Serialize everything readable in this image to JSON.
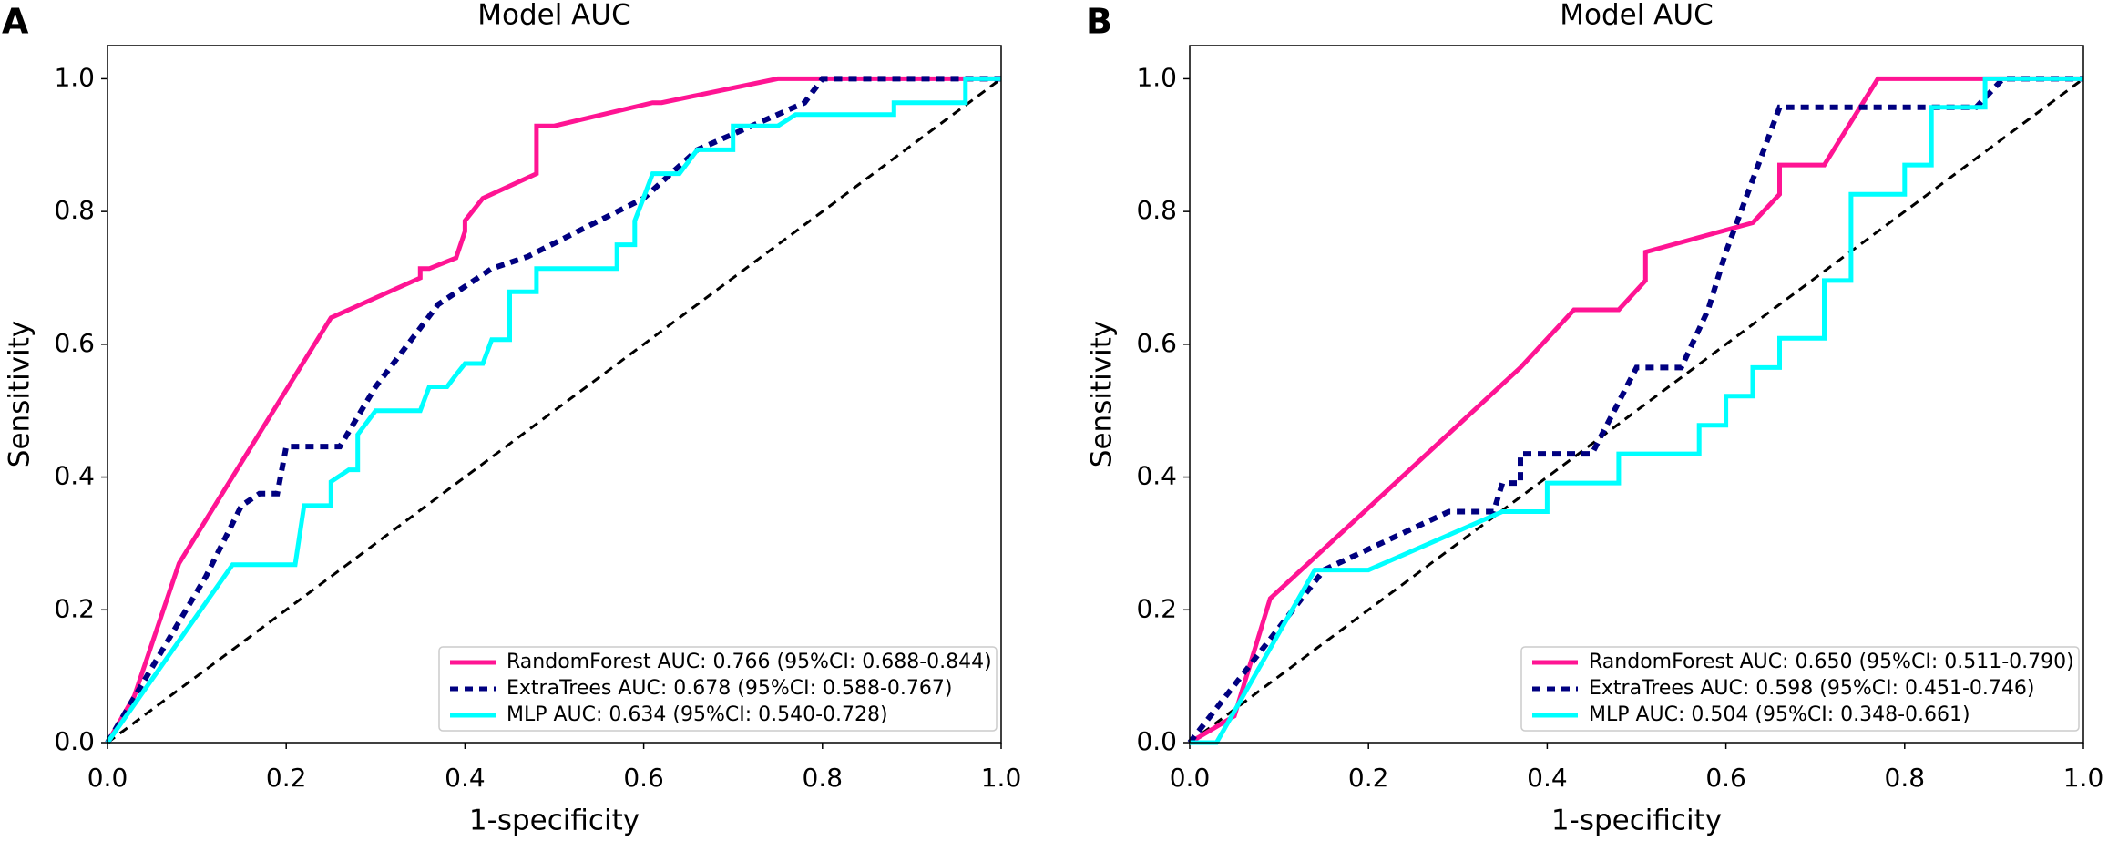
{
  "chart_data": [
    {
      "type": "line",
      "panel_label": "A",
      "title": "Model AUC",
      "xlabel": "1-specificity",
      "ylabel": "Sensitivity",
      "xlim": [
        0,
        1.0
      ],
      "ylim": [
        0,
        1.05
      ],
      "xticks": [
        {
          "value": 0,
          "label": "0.0"
        },
        0.2,
        0.4,
        0.6,
        0.8,
        {
          "value": 1,
          "label": "1.0"
        }
      ],
      "yticks": [
        {
          "value": 0,
          "label": "0.0"
        },
        0.2,
        0.4,
        0.6,
        0.8,
        {
          "value": 1,
          "label": "1.0"
        }
      ],
      "diagonal": true,
      "legend": "lower right",
      "series": [
        {
          "name": "RandomForest AUC: 0.766 (95%CI: 0.688-0.844)",
          "color": "#ff1493",
          "style": "solid",
          "x": [
            0,
            0.03,
            0.08,
            0.25,
            0.35,
            0.35,
            0.36,
            0.39,
            0.4,
            0.4,
            0.42,
            0.48,
            0.48,
            0.5,
            0.61,
            0.62,
            0.75,
            1
          ],
          "values": [
            0,
            0.07,
            0.27,
            0.64,
            0.7,
            0.714,
            0.714,
            0.73,
            0.77,
            0.786,
            0.82,
            0.857,
            0.929,
            0.929,
            0.964,
            0.964,
            1,
            1
          ]
        },
        {
          "name": "ExtraTrees AUC: 0.678 (95%CI: 0.588-0.767)",
          "color": "#000080",
          "style": "dotted",
          "x": [
            0,
            0.11,
            0.15,
            0.17,
            0.19,
            0.2,
            0.26,
            0.3,
            0.37,
            0.43,
            0.47,
            0.6,
            0.66,
            0.78,
            0.8,
            1
          ],
          "values": [
            0,
            0.25,
            0.357,
            0.375,
            0.375,
            0.446,
            0.446,
            0.536,
            0.66,
            0.714,
            0.732,
            0.82,
            0.893,
            0.964,
            1,
            1
          ]
        },
        {
          "name": "MLP AUC: 0.634 (95%CI: 0.540-0.728)",
          "color": "#00ffff",
          "style": "solid",
          "x": [
            0,
            0.14,
            0.21,
            0.22,
            0.25,
            0.25,
            0.27,
            0.28,
            0.28,
            0.3,
            0.35,
            0.36,
            0.38,
            0.39,
            0.4,
            0.42,
            0.43,
            0.45,
            0.45,
            0.48,
            0.48,
            0.57,
            0.57,
            0.59,
            0.59,
            0.6,
            0.61,
            0.64,
            0.65,
            0.66,
            0.7,
            0.7,
            0.75,
            0.77,
            0.88,
            0.88,
            0.96,
            0.96,
            1
          ],
          "values": [
            0,
            0.268,
            0.268,
            0.357,
            0.357,
            0.393,
            0.411,
            0.411,
            0.464,
            0.5,
            0.5,
            0.536,
            0.536,
            0.554,
            0.571,
            0.571,
            0.607,
            0.607,
            0.679,
            0.679,
            0.714,
            0.714,
            0.75,
            0.75,
            0.786,
            0.821,
            0.857,
            0.857,
            0.875,
            0.893,
            0.893,
            0.929,
            0.929,
            0.946,
            0.946,
            0.964,
            0.964,
            1,
            1
          ]
        }
      ]
    },
    {
      "type": "line",
      "panel_label": "B",
      "title": "Model AUC",
      "xlabel": "1-specificity",
      "ylabel": "Sensitivity",
      "xlim": [
        0,
        1.0
      ],
      "ylim": [
        0,
        1.05
      ],
      "xticks": [
        {
          "value": 0,
          "label": "0.0"
        },
        0.2,
        0.4,
        0.6,
        0.8,
        {
          "value": 1,
          "label": "1.0"
        }
      ],
      "yticks": [
        {
          "value": 0,
          "label": "0.0"
        },
        0.2,
        0.4,
        0.6,
        0.8,
        {
          "value": 1,
          "label": "1.0"
        }
      ],
      "diagonal": true,
      "legend": "lower right",
      "series": [
        {
          "name": "RandomForest AUC: 0.650 (95%CI: 0.511-0.790)",
          "color": "#ff1493",
          "style": "solid",
          "x": [
            0,
            0.05,
            0.09,
            0.37,
            0.43,
            0.48,
            0.51,
            0.51,
            0.63,
            0.66,
            0.66,
            0.71,
            0.77,
            0.88,
            1
          ],
          "values": [
            0,
            0.04,
            0.217,
            0.565,
            0.652,
            0.652,
            0.696,
            0.739,
            0.783,
            0.826,
            0.87,
            0.87,
            1,
            1,
            1
          ]
        },
        {
          "name": "ExtraTrees AUC: 0.598 (95%CI: 0.451-0.746)",
          "color": "#000080",
          "style": "dotted",
          "x": [
            0,
            0.15,
            0.29,
            0.34,
            0.35,
            0.37,
            0.37,
            0.45,
            0.5,
            0.55,
            0.58,
            0.6,
            0.66,
            0.83,
            0.88,
            0.91,
            1
          ],
          "values": [
            0,
            0.26,
            0.348,
            0.348,
            0.391,
            0.391,
            0.435,
            0.435,
            0.565,
            0.565,
            0.652,
            0.739,
            0.957,
            0.957,
            0.957,
            1,
            1
          ]
        },
        {
          "name": "MLP AUC: 0.504 (95%CI: 0.348-0.661)",
          "color": "#00ffff",
          "style": "solid",
          "x": [
            0,
            0.03,
            0.14,
            0.2,
            0.35,
            0.4,
            0.4,
            0.48,
            0.48,
            0.57,
            0.57,
            0.6,
            0.6,
            0.63,
            0.63,
            0.66,
            0.66,
            0.71,
            0.71,
            0.74,
            0.74,
            0.8,
            0.8,
            0.83,
            0.83,
            0.89,
            0.89,
            1
          ],
          "values": [
            0,
            0,
            0.26,
            0.26,
            0.348,
            0.348,
            0.391,
            0.391,
            0.435,
            0.435,
            0.478,
            0.478,
            0.522,
            0.522,
            0.565,
            0.565,
            0.609,
            0.609,
            0.696,
            0.696,
            0.826,
            0.826,
            0.87,
            0.87,
            0.957,
            0.957,
            1,
            1
          ]
        }
      ]
    }
  ]
}
